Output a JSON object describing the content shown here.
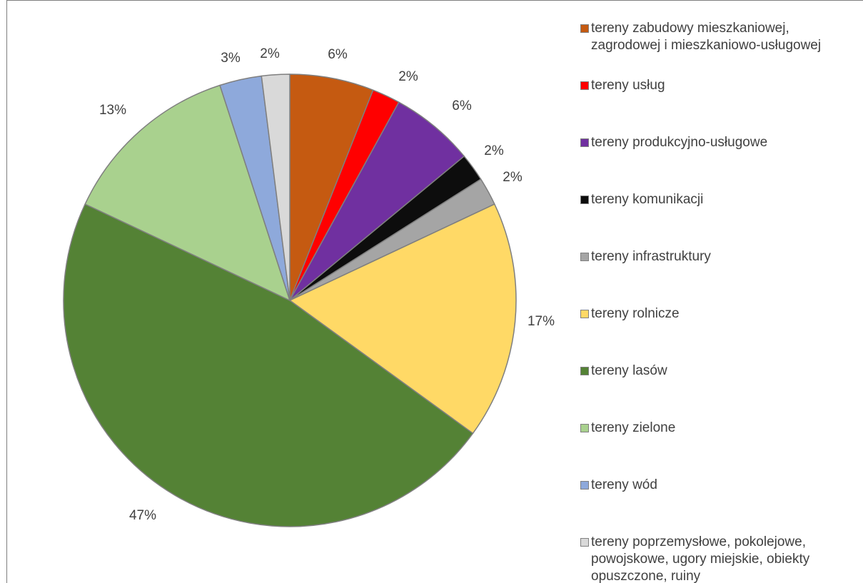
{
  "chart_data": {
    "type": "pie",
    "title": "",
    "slices": [
      {
        "label": "tereny zabudowy mieszkaniowej,\nzagrodowej i mieszkaniowo-usługowej",
        "value": 6,
        "label_text": "6%",
        "color": "#C55A11"
      },
      {
        "label": "tereny usług",
        "value": 2,
        "label_text": "2%",
        "color": "#FF0000"
      },
      {
        "label": "tereny produkcyjno-usługowe",
        "value": 6,
        "label_text": "6%",
        "color": "#7030A0"
      },
      {
        "label": "tereny komunikacji",
        "value": 2,
        "label_text": "2%",
        "color": "#0D0D0D"
      },
      {
        "label": "tereny infrastruktury",
        "value": 2,
        "label_text": "2%",
        "color": "#A5A5A5"
      },
      {
        "label": "tereny rolnicze",
        "value": 17,
        "label_text": "17%",
        "color": "#FFD966"
      },
      {
        "label": "tereny lasów",
        "value": 47,
        "label_text": "47%",
        "color": "#548235"
      },
      {
        "label": "tereny zielone",
        "value": 13,
        "label_text": "13%",
        "color": "#A9D18E"
      },
      {
        "label": "tereny wód",
        "value": 3,
        "label_text": "3%",
        "color": "#8EA9DB"
      },
      {
        "label": "tereny poprzemysłowe, pokolejowe,\npowojskowe, ugory miejskie, obiekty\nopuszczone, ruiny",
        "value": 2,
        "label_text": "2%",
        "color": "#D9D9D9"
      }
    ],
    "legend_position": "right"
  }
}
